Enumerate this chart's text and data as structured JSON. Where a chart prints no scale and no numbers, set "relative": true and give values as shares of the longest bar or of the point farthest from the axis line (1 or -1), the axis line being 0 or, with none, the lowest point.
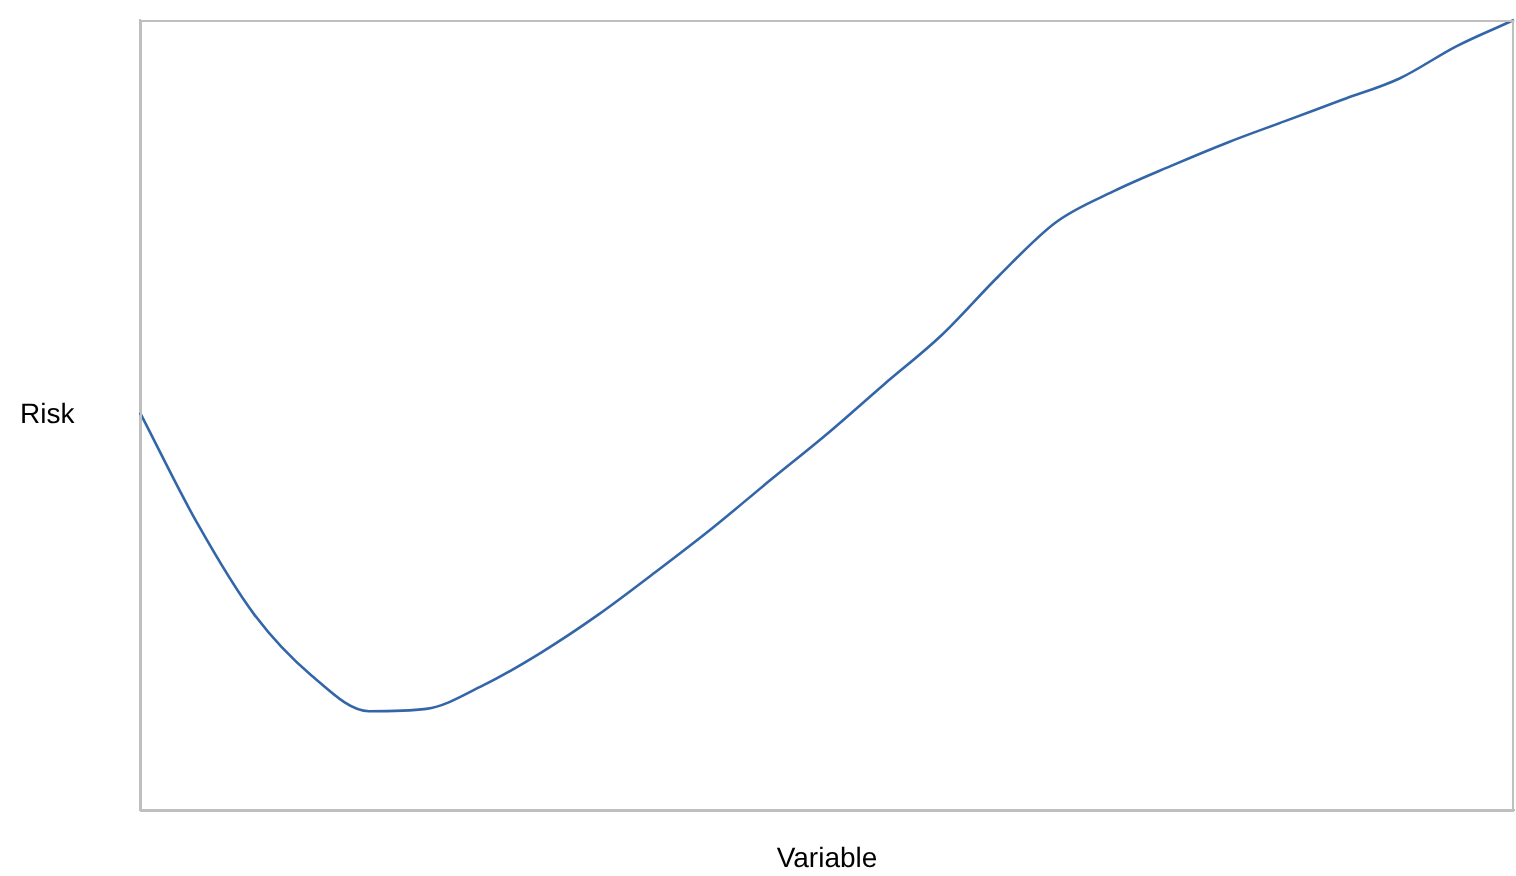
{
  "chart_data": {
    "type": "line",
    "relative": true,
    "xlabel": "Variable",
    "ylabel": "Risk",
    "color": "#3366a8",
    "marker": "none",
    "grid": false,
    "legend": false,
    "categories": [
      null,
      null,
      null,
      null,
      null,
      null,
      null,
      null,
      null,
      null,
      null,
      null,
      null,
      null,
      null,
      null,
      null,
      null,
      null,
      null,
      null,
      null,
      null,
      null,
      null
    ],
    "values": [
      0.503,
      0.363,
      0.247,
      0.17,
      0.125,
      0.128,
      0.158,
      0.199,
      0.247,
      0.301,
      0.357,
      0.417,
      0.476,
      0.539,
      0.601,
      0.676,
      0.744,
      0.783,
      0.815,
      0.845,
      0.872,
      0.899,
      0.926,
      0.967,
      1
    ]
  }
}
